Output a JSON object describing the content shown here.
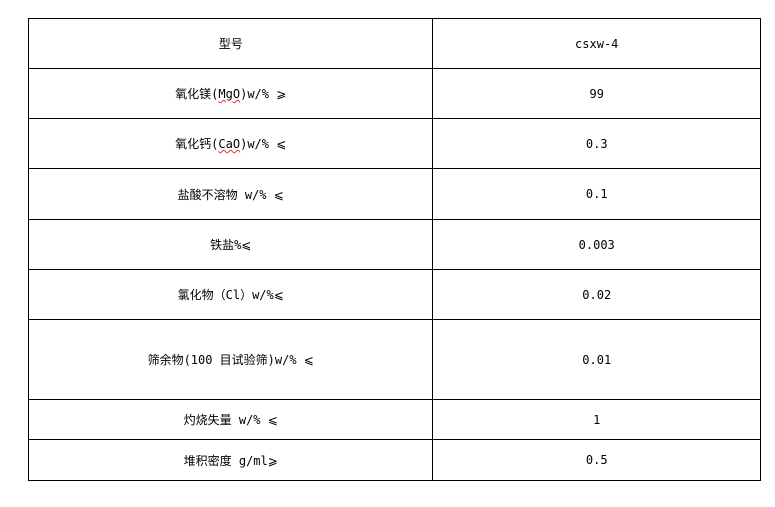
{
  "table": {
    "header": {
      "label": "型号",
      "value": "csxw-4"
    },
    "rows": [
      {
        "label_pre": "氧化镁(",
        "label_spell": "MgO",
        "label_post": ")w/% ⩾",
        "value": "99"
      },
      {
        "label_pre": "氧化钙(",
        "label_spell": "CaO",
        "label_post": ")w/% ⩽",
        "value": "0.3"
      },
      {
        "label": "盐酸不溶物 w/% ⩽",
        "value": "0.1"
      },
      {
        "label": "铁盐%⩽",
        "value": "0.003"
      },
      {
        "label": "氯化物（Cl）w/%⩽",
        "value": "0.02"
      },
      {
        "label": "筛余物(100 目试验筛)w/% ⩽",
        "value": "0.01"
      },
      {
        "label": "灼烧失量 w/% ⩽",
        "value": "1"
      },
      {
        "label": "堆积密度 g/ml⩾",
        "value": "0.5"
      }
    ]
  }
}
